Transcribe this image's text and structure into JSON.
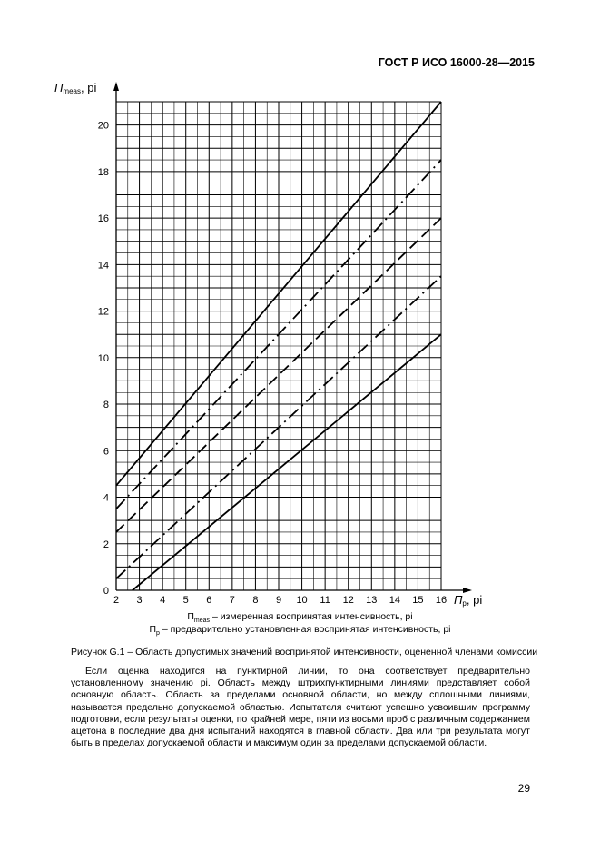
{
  "header": {
    "standard": "ГОСТ Р ИСО 16000-28—2015"
  },
  "chart_data": {
    "type": "line",
    "title": "",
    "ylabel": {
      "symbol": "П",
      "sub": "meas",
      "unit": ", pi"
    },
    "xlabel": {
      "symbol": "П",
      "sub": "p",
      "unit": ", pi"
    },
    "xlim": [
      2,
      16
    ],
    "ylim": [
      0,
      21
    ],
    "x_ticks": [
      "2",
      "3",
      "4",
      "5",
      "6",
      "7",
      "8",
      "9",
      "10",
      "11",
      "12",
      "13",
      "14",
      "15",
      "16"
    ],
    "y_ticks": [
      "0",
      "2",
      "4",
      "6",
      "8",
      "10",
      "12",
      "14",
      "16",
      "18",
      "20"
    ],
    "grid": true,
    "series": [
      {
        "style": "solid",
        "x": [
          2,
          16
        ],
        "y": [
          4.5,
          21
        ]
      },
      {
        "style": "dash-dot",
        "x": [
          2,
          16
        ],
        "y": [
          3.5,
          18.5
        ]
      },
      {
        "style": "dashed",
        "x": [
          2,
          16
        ],
        "y": [
          2.5,
          16
        ]
      },
      {
        "style": "dash-dot",
        "x": [
          2,
          16
        ],
        "y": [
          0.5,
          13.5
        ]
      },
      {
        "style": "solid",
        "x": [
          2.7,
          16
        ],
        "y": [
          0,
          11
        ]
      }
    ]
  },
  "legend": {
    "line1": {
      "symbol": "П",
      "sub": "meas",
      "text": " – измеренная воспринятая интенсивность, pi"
    },
    "line2": {
      "symbol": "П",
      "sub": "p",
      "text": " – предварительно установленная воспринятая интенсивность, pi"
    }
  },
  "caption": "Рисунок G.1 – Область допустимых значений воспринятой интенсивности, оцененной членами комиссии",
  "paragraph": "Если оценка находится на пунктирной линии, то она соответствует предварительно установленному значению pi. Область между штрихпунктирными линиями представляет собой основную область. Область за пределами основной области, но между сплошными линиями, называется предельно допускаемой областью. Испытателя считают успешно усвоившим программу подготовки, если результаты оценки, по крайней мере, пяти из восьми проб с различным содержанием ацетона в последние два дня испытаний находятся в главной области. Два или три результата могут быть в пределах допускаемой области и максимум один за пределами допускаемой области.",
  "page_number": "29"
}
